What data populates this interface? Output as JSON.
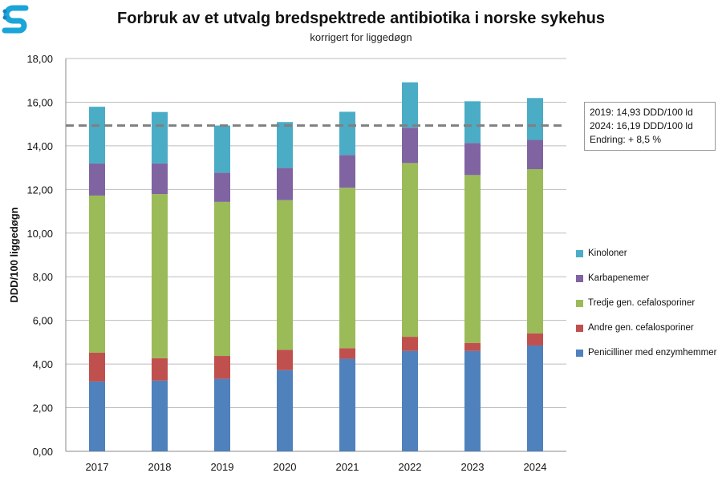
{
  "chart_data": {
    "type": "bar",
    "stacked": true,
    "title": "Forbruk av et utvalg bredspektrede antibiotika i norske sykehus",
    "subtitle": "korrigert for liggedøgn",
    "xlabel": "",
    "ylabel": "DDD/100 liggedøgn",
    "ylim": [
      0,
      18
    ],
    "yticks": [
      "0,00",
      "2,00",
      "4,00",
      "6,00",
      "8,00",
      "10,00",
      "12,00",
      "14,00",
      "16,00",
      "18,00"
    ],
    "grid": true,
    "legend_position": "right",
    "categories": [
      "2017",
      "2018",
      "2019",
      "2020",
      "2021",
      "2022",
      "2023",
      "2024"
    ],
    "series": [
      {
        "name": "Penicilliner med enzymhemmer",
        "color": "#4f81bd",
        "values": [
          3.2,
          3.24,
          3.32,
          3.72,
          4.24,
          4.6,
          4.6,
          4.85
        ]
      },
      {
        "name": "Andre gen. cefalosporiner",
        "color": "#c0504d",
        "values": [
          1.32,
          1.03,
          1.05,
          0.93,
          0.49,
          0.65,
          0.37,
          0.56
        ]
      },
      {
        "name": "Tredje gen. cefalosporiner",
        "color": "#9bbb59",
        "values": [
          7.2,
          7.52,
          7.06,
          6.86,
          7.35,
          7.96,
          7.69,
          7.52
        ]
      },
      {
        "name": "Karbapenemer",
        "color": "#8064a2",
        "values": [
          1.47,
          1.4,
          1.34,
          1.48,
          1.5,
          1.62,
          1.47,
          1.34
        ]
      },
      {
        "name": "Kinoloner",
        "color": "#4bacc6",
        "values": [
          2.6,
          2.36,
          2.16,
          2.1,
          1.98,
          2.08,
          1.91,
          1.92
        ]
      }
    ],
    "reference_line": {
      "value": 14.93,
      "style": "dashed",
      "color": "#808080"
    },
    "annotations": [
      "2019: 14,93 DDD/100 ld",
      "2024: 16,19 DDD/100 ld",
      "Endring: + 8,5 %"
    ]
  }
}
